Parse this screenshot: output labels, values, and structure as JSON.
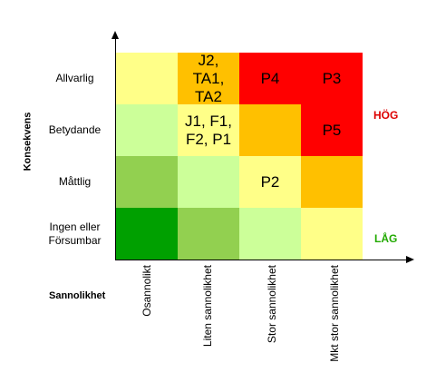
{
  "axes": {
    "y_title": "Konsekvens",
    "x_title": "Sannolikhet"
  },
  "rows": [
    {
      "label": "Allvarlig",
      "cells": [
        {
          "text": "",
          "color": "#ffff88"
        },
        {
          "text": "J2,\nTA1,\nTA2",
          "color": "#ffc000"
        },
        {
          "text": "P4",
          "color": "#ff0000"
        },
        {
          "text": "P3",
          "color": "#ff0000"
        }
      ]
    },
    {
      "label": "Betydande",
      "cells": [
        {
          "text": "",
          "color": "#ccff99"
        },
        {
          "text": "J1, F1,\nF2, P1",
          "color": "#ffff88"
        },
        {
          "text": "",
          "color": "#ffc000"
        },
        {
          "text": "P5",
          "color": "#ff0000"
        }
      ]
    },
    {
      "label": "Måttlig",
      "cells": [
        {
          "text": "",
          "color": "#92d050"
        },
        {
          "text": "",
          "color": "#ccff99"
        },
        {
          "text": "P2",
          "color": "#ffff88"
        },
        {
          "text": "",
          "color": "#ffc000"
        }
      ]
    },
    {
      "label": "Ingen eller\nFörsumbar",
      "cells": [
        {
          "text": "",
          "color": "#00a000"
        },
        {
          "text": "",
          "color": "#92d050"
        },
        {
          "text": "",
          "color": "#ccff99"
        },
        {
          "text": "",
          "color": "#ffff88"
        }
      ]
    }
  ],
  "columns": [
    "Osannolikt",
    "Liten sannolikhet",
    "Stor sannolikhet",
    "Mkt stor sannolikhet"
  ],
  "levels": {
    "high": {
      "label": "HÖG",
      "color": "#dd0000"
    },
    "low": {
      "label": "LÅG",
      "color": "#22aa00"
    }
  }
}
